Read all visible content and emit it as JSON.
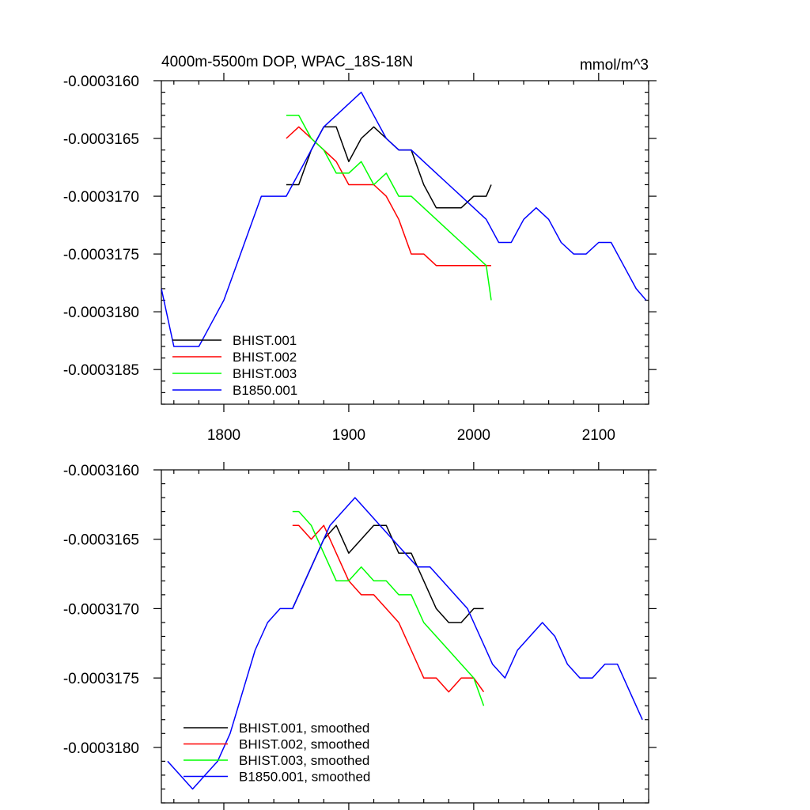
{
  "chart_data": [
    {
      "type": "line",
      "title": "4000m-5500m DOP, WPAC_18S-18N",
      "units": "mmol/m^3",
      "xlim": [
        1750,
        2140
      ],
      "ylim": [
        -0.0003188,
        -0.000316
      ],
      "x_ticks": [
        1800,
        1900,
        2000,
        2100
      ],
      "x_tick_labels": [
        "1800",
        "1900",
        "2000",
        "2100"
      ],
      "y_ticks": [
        -0.000316,
        -0.0003165,
        -0.000317,
        -0.0003175,
        -0.000318,
        -0.0003185
      ],
      "y_tick_labels": [
        "-0.0003160",
        "-0.0003165",
        "-0.0003170",
        "-0.0003175",
        "-0.0003180",
        "-0.0003185"
      ],
      "legend_position": "bottom-left",
      "series": [
        {
          "name": "BHIST.001",
          "color": "#000000",
          "x": [
            1850,
            1860,
            1870,
            1880,
            1890,
            1900,
            1910,
            1920,
            1930,
            1940,
            1950,
            1960,
            1970,
            1980,
            1990,
            2000,
            2010,
            2014
          ],
          "y": [
            -0.0003169,
            -0.0003169,
            -0.0003166,
            -0.0003164,
            -0.0003164,
            -0.0003167,
            -0.0003165,
            -0.0003164,
            -0.0003165,
            -0.0003166,
            -0.0003166,
            -0.0003169,
            -0.0003171,
            -0.0003171,
            -0.0003171,
            -0.000317,
            -0.000317,
            -0.0003169
          ]
        },
        {
          "name": "BHIST.002",
          "color": "#ff0000",
          "x": [
            1850,
            1860,
            1870,
            1880,
            1890,
            1900,
            1910,
            1920,
            1930,
            1940,
            1950,
            1960,
            1970,
            1980,
            1990,
            2000,
            2010,
            2014
          ],
          "y": [
            -0.0003165,
            -0.0003164,
            -0.0003165,
            -0.0003166,
            -0.0003167,
            -0.0003169,
            -0.0003169,
            -0.0003169,
            -0.000317,
            -0.0003172,
            -0.0003175,
            -0.0003175,
            -0.0003176,
            -0.0003176,
            -0.0003176,
            -0.0003176,
            -0.0003176,
            -0.0003176
          ]
        },
        {
          "name": "BHIST.003",
          "color": "#00ff00",
          "x": [
            1850,
            1860,
            1870,
            1880,
            1890,
            1900,
            1910,
            1920,
            1930,
            1940,
            1950,
            1960,
            1970,
            1980,
            1990,
            2000,
            2010,
            2014
          ],
          "y": [
            -0.0003163,
            -0.0003163,
            -0.0003165,
            -0.0003166,
            -0.0003168,
            -0.0003168,
            -0.0003167,
            -0.0003169,
            -0.0003168,
            -0.000317,
            -0.000317,
            -0.0003171,
            -0.0003172,
            -0.0003173,
            -0.0003174,
            -0.0003175,
            -0.0003176,
            -0.0003179
          ]
        },
        {
          "name": "B1850.001",
          "color": "#0000ff",
          "x": [
            1750,
            1760,
            1770,
            1780,
            1790,
            1800,
            1810,
            1820,
            1830,
            1840,
            1850,
            1860,
            1870,
            1880,
            1890,
            1900,
            1910,
            1920,
            1930,
            1940,
            1950,
            1960,
            1970,
            1980,
            1990,
            2000,
            2010,
            2020,
            2030,
            2040,
            2050,
            2060,
            2070,
            2080,
            2090,
            2100,
            2110,
            2120,
            2130,
            2138
          ],
          "y": [
            -0.0003178,
            -0.0003183,
            -0.0003183,
            -0.0003183,
            -0.0003181,
            -0.0003179,
            -0.0003176,
            -0.0003173,
            -0.000317,
            -0.000317,
            -0.000317,
            -0.0003168,
            -0.0003166,
            -0.0003164,
            -0.0003163,
            -0.0003162,
            -0.0003161,
            -0.0003163,
            -0.0003165,
            -0.0003166,
            -0.0003166,
            -0.0003167,
            -0.0003168,
            -0.0003169,
            -0.000317,
            -0.0003171,
            -0.0003172,
            -0.0003174,
            -0.0003174,
            -0.0003172,
            -0.0003171,
            -0.0003172,
            -0.0003174,
            -0.0003175,
            -0.0003175,
            -0.0003174,
            -0.0003174,
            -0.0003176,
            -0.0003178,
            -0.0003179
          ]
        }
      ]
    },
    {
      "type": "line",
      "title": "",
      "units": "",
      "xlim": [
        1750,
        2140
      ],
      "ylim": [
        -0.0003184,
        -0.000316
      ],
      "x_ticks": [
        1800,
        1900,
        2000,
        2100
      ],
      "x_tick_labels": [],
      "y_ticks": [
        -0.000316,
        -0.0003165,
        -0.000317,
        -0.0003175,
        -0.000318
      ],
      "y_tick_labels": [
        "-0.0003160",
        "-0.0003165",
        "-0.0003170",
        "-0.0003175",
        "-0.0003180"
      ],
      "legend_position": "bottom-left",
      "series": [
        {
          "name": "BHIST.001, smoothed",
          "color": "#000000",
          "x": [
            1855,
            1860,
            1870,
            1880,
            1890,
            1900,
            1910,
            1920,
            1930,
            1940,
            1950,
            1960,
            1970,
            1980,
            1990,
            2000,
            2008
          ],
          "y": [
            -0.000317,
            -0.0003169,
            -0.0003167,
            -0.0003165,
            -0.0003164,
            -0.0003166,
            -0.0003165,
            -0.0003164,
            -0.0003164,
            -0.0003166,
            -0.0003166,
            -0.0003168,
            -0.000317,
            -0.0003171,
            -0.0003171,
            -0.000317,
            -0.000317
          ]
        },
        {
          "name": "BHIST.002, smoothed",
          "color": "#ff0000",
          "x": [
            1855,
            1860,
            1870,
            1880,
            1890,
            1900,
            1910,
            1920,
            1930,
            1940,
            1950,
            1960,
            1970,
            1980,
            1990,
            2000,
            2008
          ],
          "y": [
            -0.0003164,
            -0.0003164,
            -0.0003165,
            -0.0003164,
            -0.0003166,
            -0.0003168,
            -0.0003169,
            -0.0003169,
            -0.000317,
            -0.0003171,
            -0.0003173,
            -0.0003175,
            -0.0003175,
            -0.0003176,
            -0.0003175,
            -0.0003175,
            -0.0003176
          ]
        },
        {
          "name": "BHIST.003, smoothed",
          "color": "#00ff00",
          "x": [
            1855,
            1860,
            1870,
            1880,
            1890,
            1900,
            1910,
            1920,
            1930,
            1940,
            1950,
            1960,
            1970,
            1980,
            1990,
            2000,
            2008
          ],
          "y": [
            -0.0003163,
            -0.0003163,
            -0.0003164,
            -0.0003166,
            -0.0003168,
            -0.0003168,
            -0.0003167,
            -0.0003168,
            -0.0003168,
            -0.0003169,
            -0.0003169,
            -0.0003171,
            -0.0003172,
            -0.0003173,
            -0.0003174,
            -0.0003175,
            -0.0003177
          ]
        },
        {
          "name": "B1850.001, smoothed",
          "color": "#0000ff",
          "x": [
            1755,
            1765,
            1775,
            1785,
            1795,
            1805,
            1815,
            1825,
            1835,
            1845,
            1855,
            1865,
            1875,
            1885,
            1895,
            1905,
            1915,
            1925,
            1935,
            1945,
            1955,
            1965,
            1975,
            1985,
            1995,
            2005,
            2015,
            2025,
            2035,
            2045,
            2055,
            2065,
            2075,
            2085,
            2095,
            2105,
            2115,
            2125,
            2135
          ],
          "y": [
            -0.0003181,
            -0.0003182,
            -0.0003183,
            -0.0003182,
            -0.0003181,
            -0.0003179,
            -0.0003176,
            -0.0003173,
            -0.0003171,
            -0.000317,
            -0.000317,
            -0.0003168,
            -0.0003166,
            -0.0003164,
            -0.0003163,
            -0.0003162,
            -0.0003163,
            -0.0003164,
            -0.0003165,
            -0.0003166,
            -0.0003167,
            -0.0003167,
            -0.0003168,
            -0.0003169,
            -0.000317,
            -0.0003172,
            -0.0003174,
            -0.0003175,
            -0.0003173,
            -0.0003172,
            -0.0003171,
            -0.0003172,
            -0.0003174,
            -0.0003175,
            -0.0003175,
            -0.0003174,
            -0.0003174,
            -0.0003176,
            -0.0003178
          ]
        }
      ]
    }
  ]
}
